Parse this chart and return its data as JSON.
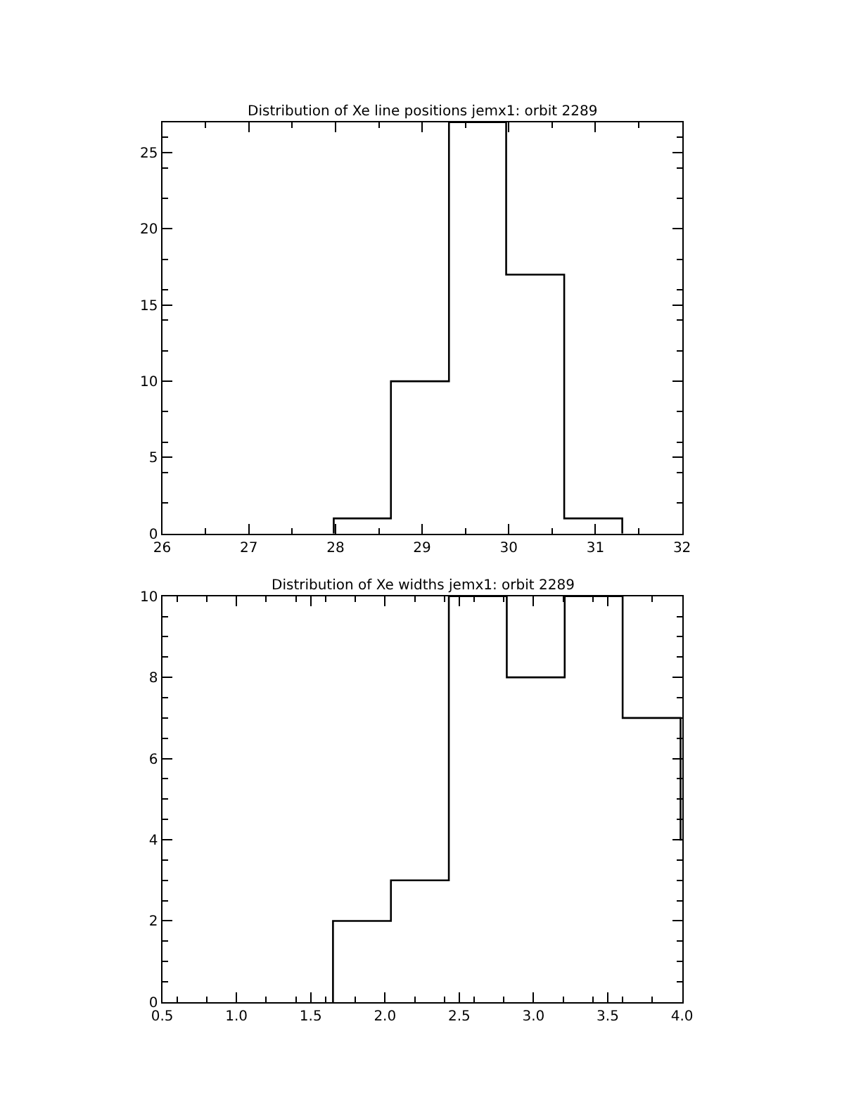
{
  "chart_data": [
    {
      "type": "histogram",
      "title": "Distribution of Xe line positions jemx1: orbit 2289",
      "bins": [
        27.98,
        28.64,
        29.31,
        29.97,
        30.64,
        31.31
      ],
      "values": [
        1,
        10,
        27,
        17,
        1
      ],
      "color": "#000000",
      "xlim": [
        26,
        32
      ],
      "xticks": [
        26,
        27,
        28,
        29,
        30,
        31,
        32
      ],
      "ylim": [
        0,
        27
      ],
      "yticks": [
        0,
        5,
        10,
        15,
        20,
        25
      ]
    },
    {
      "type": "histogram",
      "title": "Distribution of Xe widths jemx1: orbit 2289",
      "bins": [
        1.65,
        2.04,
        2.43,
        2.82,
        3.21,
        3.6,
        3.99,
        4.0
      ],
      "values": [
        2,
        3,
        10,
        8,
        10,
        7,
        4
      ],
      "color": "#000000",
      "xlim": [
        0.5,
        4.0
      ],
      "xticks": [
        {
          "value": 0.5,
          "label": "0.5"
        },
        {
          "value": 1,
          "label": "1.0"
        },
        {
          "value": 1.5,
          "label": "1.5"
        },
        {
          "value": 2,
          "label": "2.0"
        },
        {
          "value": 2.5,
          "label": "2.5"
        },
        {
          "value": 3,
          "label": "3.0"
        },
        {
          "value": 3.5,
          "label": "3.5"
        },
        {
          "value": 4,
          "label": "4.0"
        }
      ],
      "ylim": [
        0,
        10
      ],
      "yticks": [
        0,
        2,
        4,
        6,
        8,
        10
      ]
    }
  ]
}
